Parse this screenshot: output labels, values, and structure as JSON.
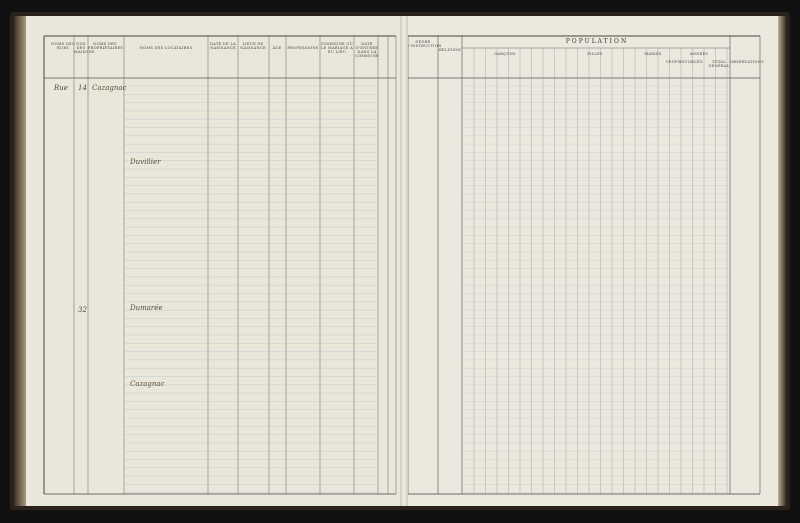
{
  "left_page": {
    "headers": [
      "Noms des rues",
      "Nos des maisons",
      "Noms des propriétaires",
      "Noms des locataires",
      "Date de la naissance",
      "Lieux de naissance",
      "Âge",
      "Professions",
      "Commune où le mariage a eu lieu",
      "Date d'entrée dans la commune"
    ]
  },
  "right_page": {
    "population_title": "POPULATION",
    "headers": [
      "Degré d'instruction",
      "Religion",
      "Garçons",
      "Filles",
      "Mariés",
      "Veufs",
      "Divorcés",
      "Années",
      "Total général",
      "Observations"
    ]
  },
  "entries": [
    {
      "street": "Rue",
      "number": "14",
      "text": "Cazagnac"
    },
    {
      "number": "",
      "text": "Duvillier"
    },
    {
      "street": "",
      "number": "32",
      "text": "Dumarée"
    },
    {
      "street": "",
      "number": "",
      "text": "Cazagnac"
    }
  ]
}
